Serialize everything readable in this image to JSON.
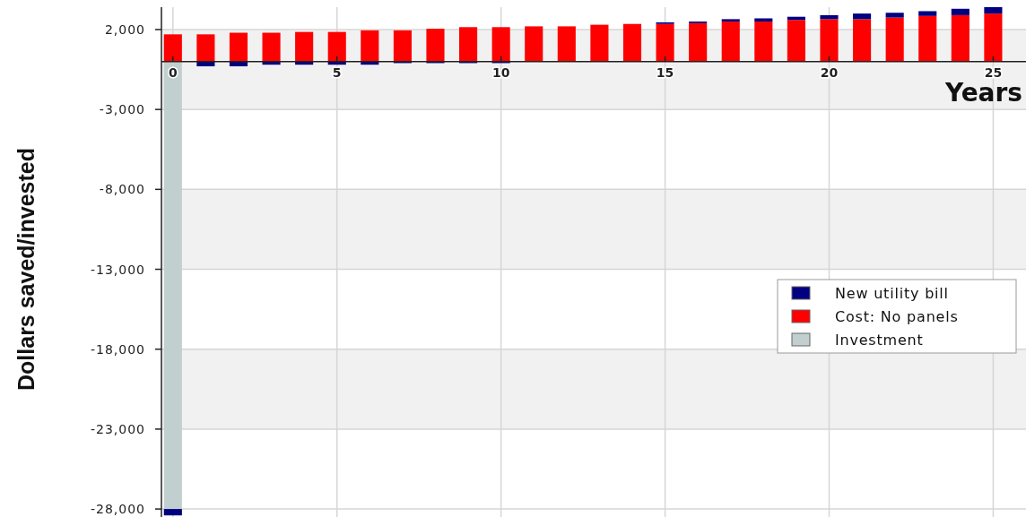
{
  "chart_data": {
    "type": "bar",
    "stacked": true,
    "xlabel": "Years",
    "ylabel": "Dollars saved/invested",
    "x": [
      0,
      1,
      2,
      3,
      4,
      5,
      6,
      7,
      8,
      9,
      10,
      11,
      12,
      13,
      14,
      15,
      16,
      17,
      18,
      19,
      20,
      21,
      22,
      23,
      24,
      25
    ],
    "series": [
      {
        "name": "Investment",
        "color": "#c2cfcf",
        "values": [
          -28000,
          null,
          null,
          null,
          null,
          null,
          null,
          null,
          null,
          null,
          null,
          null,
          null,
          null,
          null,
          null,
          null,
          null,
          null,
          null,
          null,
          null,
          null,
          null,
          null,
          null
        ]
      },
      {
        "name": "Cost: No panels",
        "color": "#ff0000",
        "values": [
          1700,
          1700,
          1800,
          1800,
          1850,
          1850,
          1950,
          1950,
          2050,
          2150,
          2150,
          2200,
          2200,
          2300,
          2350,
          2350,
          2400,
          2500,
          2500,
          2600,
          2650,
          2650,
          2750,
          2850,
          2900,
          3000
        ]
      },
      {
        "name": "New utility bill",
        "color": "#000080",
        "values": [
          -400,
          -300,
          -300,
          -200,
          -200,
          -200,
          -200,
          -100,
          -100,
          -100,
          -100,
          null,
          null,
          null,
          null,
          100,
          100,
          150,
          200,
          200,
          250,
          350,
          300,
          300,
          400,
          400
        ]
      }
    ],
    "xlim": [
      -0.35,
      26
    ],
    "xticks": [
      0,
      5,
      10,
      15,
      20,
      25
    ],
    "ylim": [
      -28500,
      3400
    ],
    "yticks": [
      {
        "value": 2000,
        "label": "2,000"
      },
      {
        "value": -3000,
        "label": "-3,000"
      },
      {
        "value": -8000,
        "label": "-8,000"
      },
      {
        "value": -13000,
        "label": "-13,000"
      },
      {
        "value": -18000,
        "label": "-18,000"
      },
      {
        "value": -23000,
        "label": "-23,000"
      },
      {
        "value": -28000,
        "label": "-28,000"
      }
    ],
    "grid": true,
    "legend": "right"
  }
}
